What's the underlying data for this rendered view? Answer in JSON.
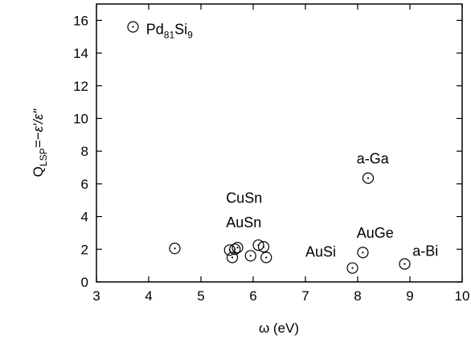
{
  "chart_data": {
    "type": "scatter",
    "title": "",
    "xlabel": "ω (eV)",
    "ylabel": {
      "base": "Q",
      "sub": "LSP",
      "rest": "=−ε′/ε″"
    },
    "xlim": [
      3,
      10
    ],
    "ylim": [
      0,
      17
    ],
    "xticks": [
      3,
      4,
      5,
      6,
      7,
      8,
      9,
      10
    ],
    "yticks": [
      0,
      2,
      4,
      6,
      8,
      10,
      12,
      14,
      16
    ],
    "grid": false,
    "legend": "none",
    "marker": "open-circle-with-center-dot",
    "points": [
      {
        "x": 3.7,
        "y": 15.6
      },
      {
        "x": 4.5,
        "y": 2.05
      },
      {
        "x": 5.55,
        "y": 1.95
      },
      {
        "x": 5.6,
        "y": 1.5
      },
      {
        "x": 5.65,
        "y": 2.0
      },
      {
        "x": 5.7,
        "y": 2.1
      },
      {
        "x": 5.95,
        "y": 1.6
      },
      {
        "x": 6.1,
        "y": 2.25
      },
      {
        "x": 6.2,
        "y": 2.15
      },
      {
        "x": 6.25,
        "y": 1.5
      },
      {
        "x": 7.9,
        "y": 0.85
      },
      {
        "x": 8.1,
        "y": 1.8
      },
      {
        "x": 8.2,
        "y": 6.35
      },
      {
        "x": 8.9,
        "y": 1.1
      }
    ],
    "annotations": [
      {
        "text": "Pd",
        "sub": "81",
        "text2": "Si",
        "sub2": "9",
        "x": 3.95,
        "y": 15.15
      },
      {
        "text": "a-Ga",
        "x": 7.98,
        "y": 7.25
      },
      {
        "text": "CuSn",
        "x": 5.48,
        "y": 4.85
      },
      {
        "text": "AuSn",
        "x": 5.48,
        "y": 3.35
      },
      {
        "text": "AuGe",
        "x": 7.98,
        "y": 2.7
      },
      {
        "text": "AuSi",
        "x": 7.0,
        "y": 1.55
      },
      {
        "text": "a-Bi",
        "x": 9.05,
        "y": 1.6
      }
    ]
  }
}
